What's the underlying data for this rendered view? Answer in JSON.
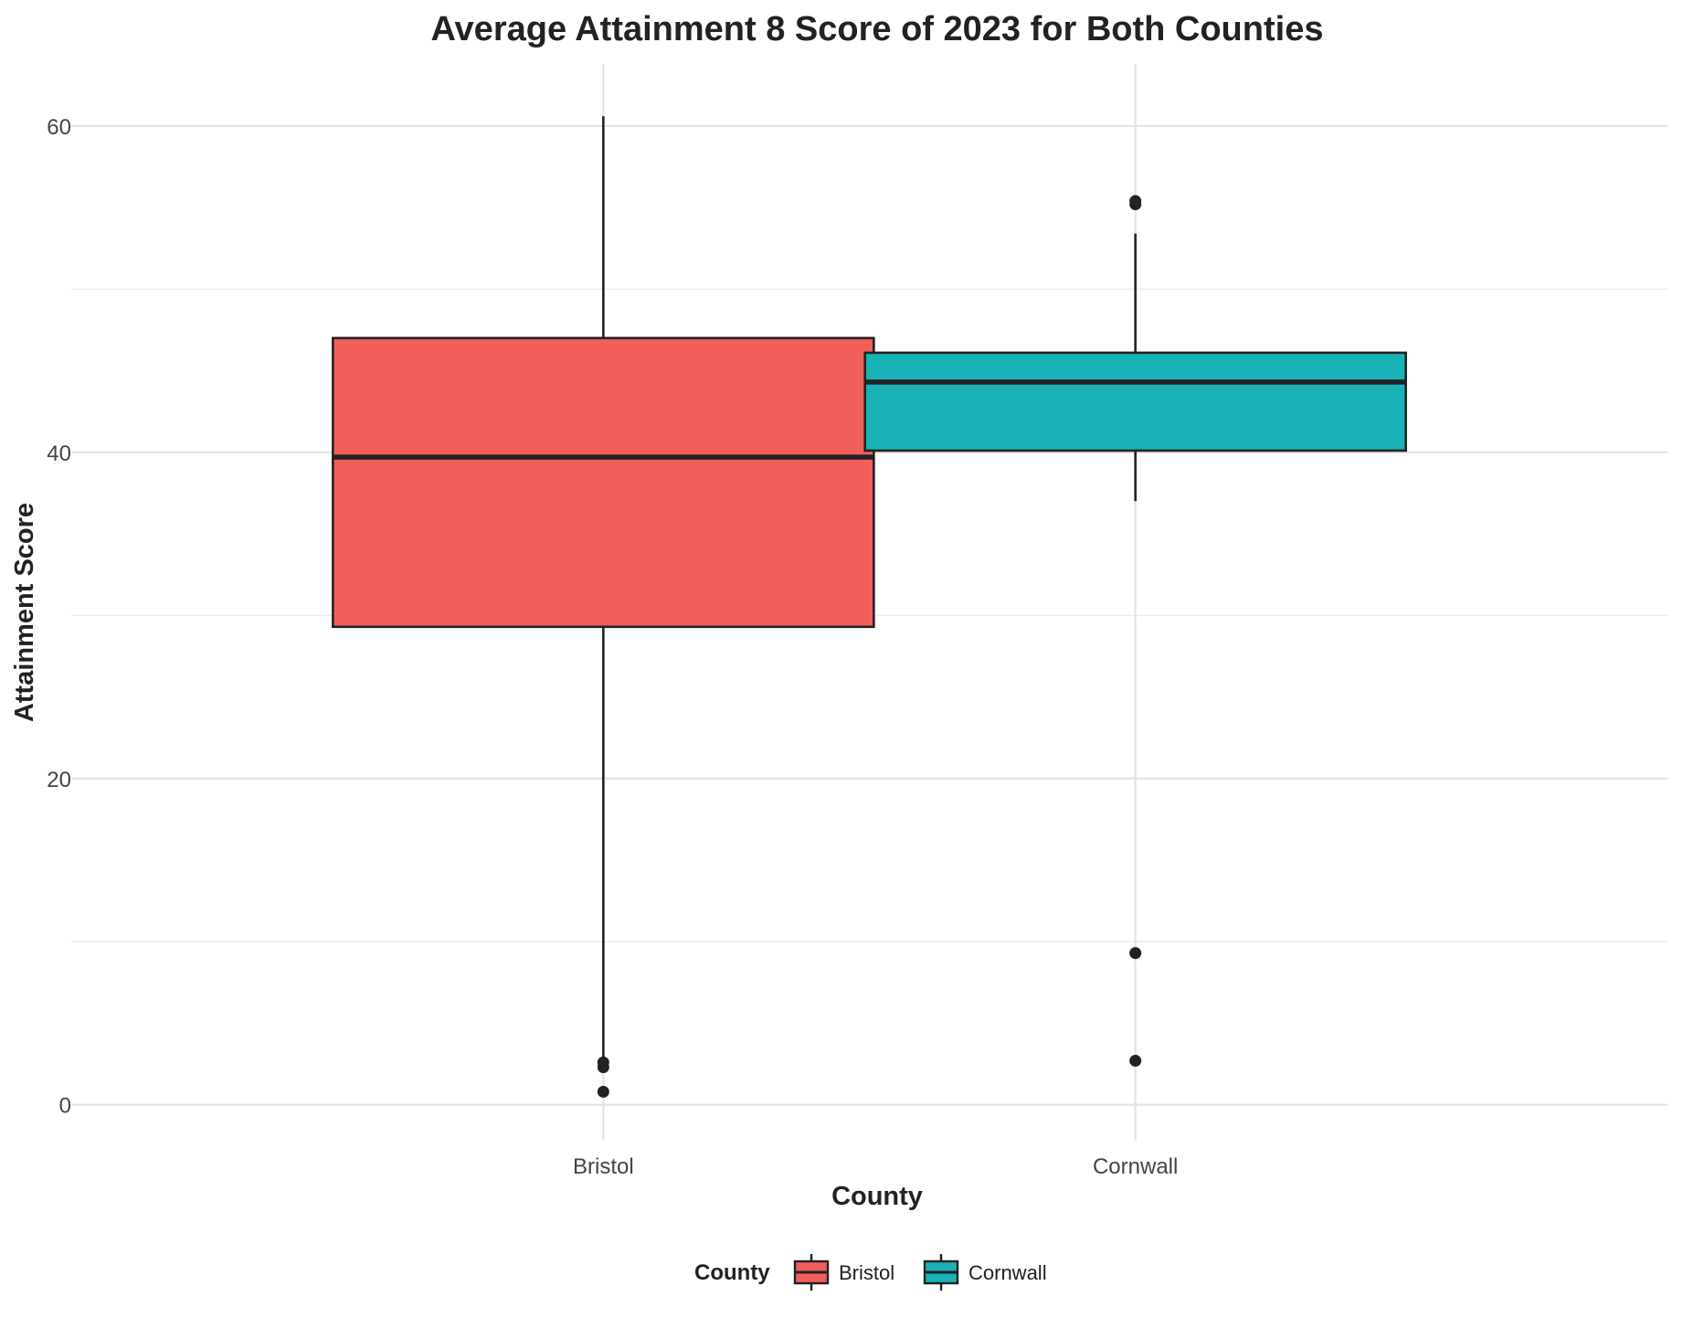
{
  "chart_data": {
    "type": "boxplot",
    "title": "Average Attainment 8 Score of 2023 for Both Counties",
    "xlabel": "County",
    "ylabel": "Attainment Score",
    "categories": [
      "Bristol",
      "Cornwall"
    ],
    "ylim": [
      -2.2,
      63.8
    ],
    "yticks": [
      0,
      20,
      40,
      60
    ],
    "grid": true,
    "legend": {
      "title": "County",
      "position": "bottom"
    },
    "series": [
      {
        "name": "Bristol",
        "color": "#F15F5C",
        "whisker_low": 2.7,
        "q1": 29.3,
        "median": 39.7,
        "q3": 47.0,
        "whisker_high": 60.6,
        "outliers": [
          2.3,
          2.6,
          0.8
        ]
      },
      {
        "name": "Cornwall",
        "color": "#19B2B7",
        "whisker_low": 37.0,
        "q1": 40.1,
        "median": 44.3,
        "q3": 46.1,
        "whisker_high": 53.4,
        "outliers": [
          55.2,
          55.4,
          9.3,
          2.7
        ]
      }
    ]
  }
}
